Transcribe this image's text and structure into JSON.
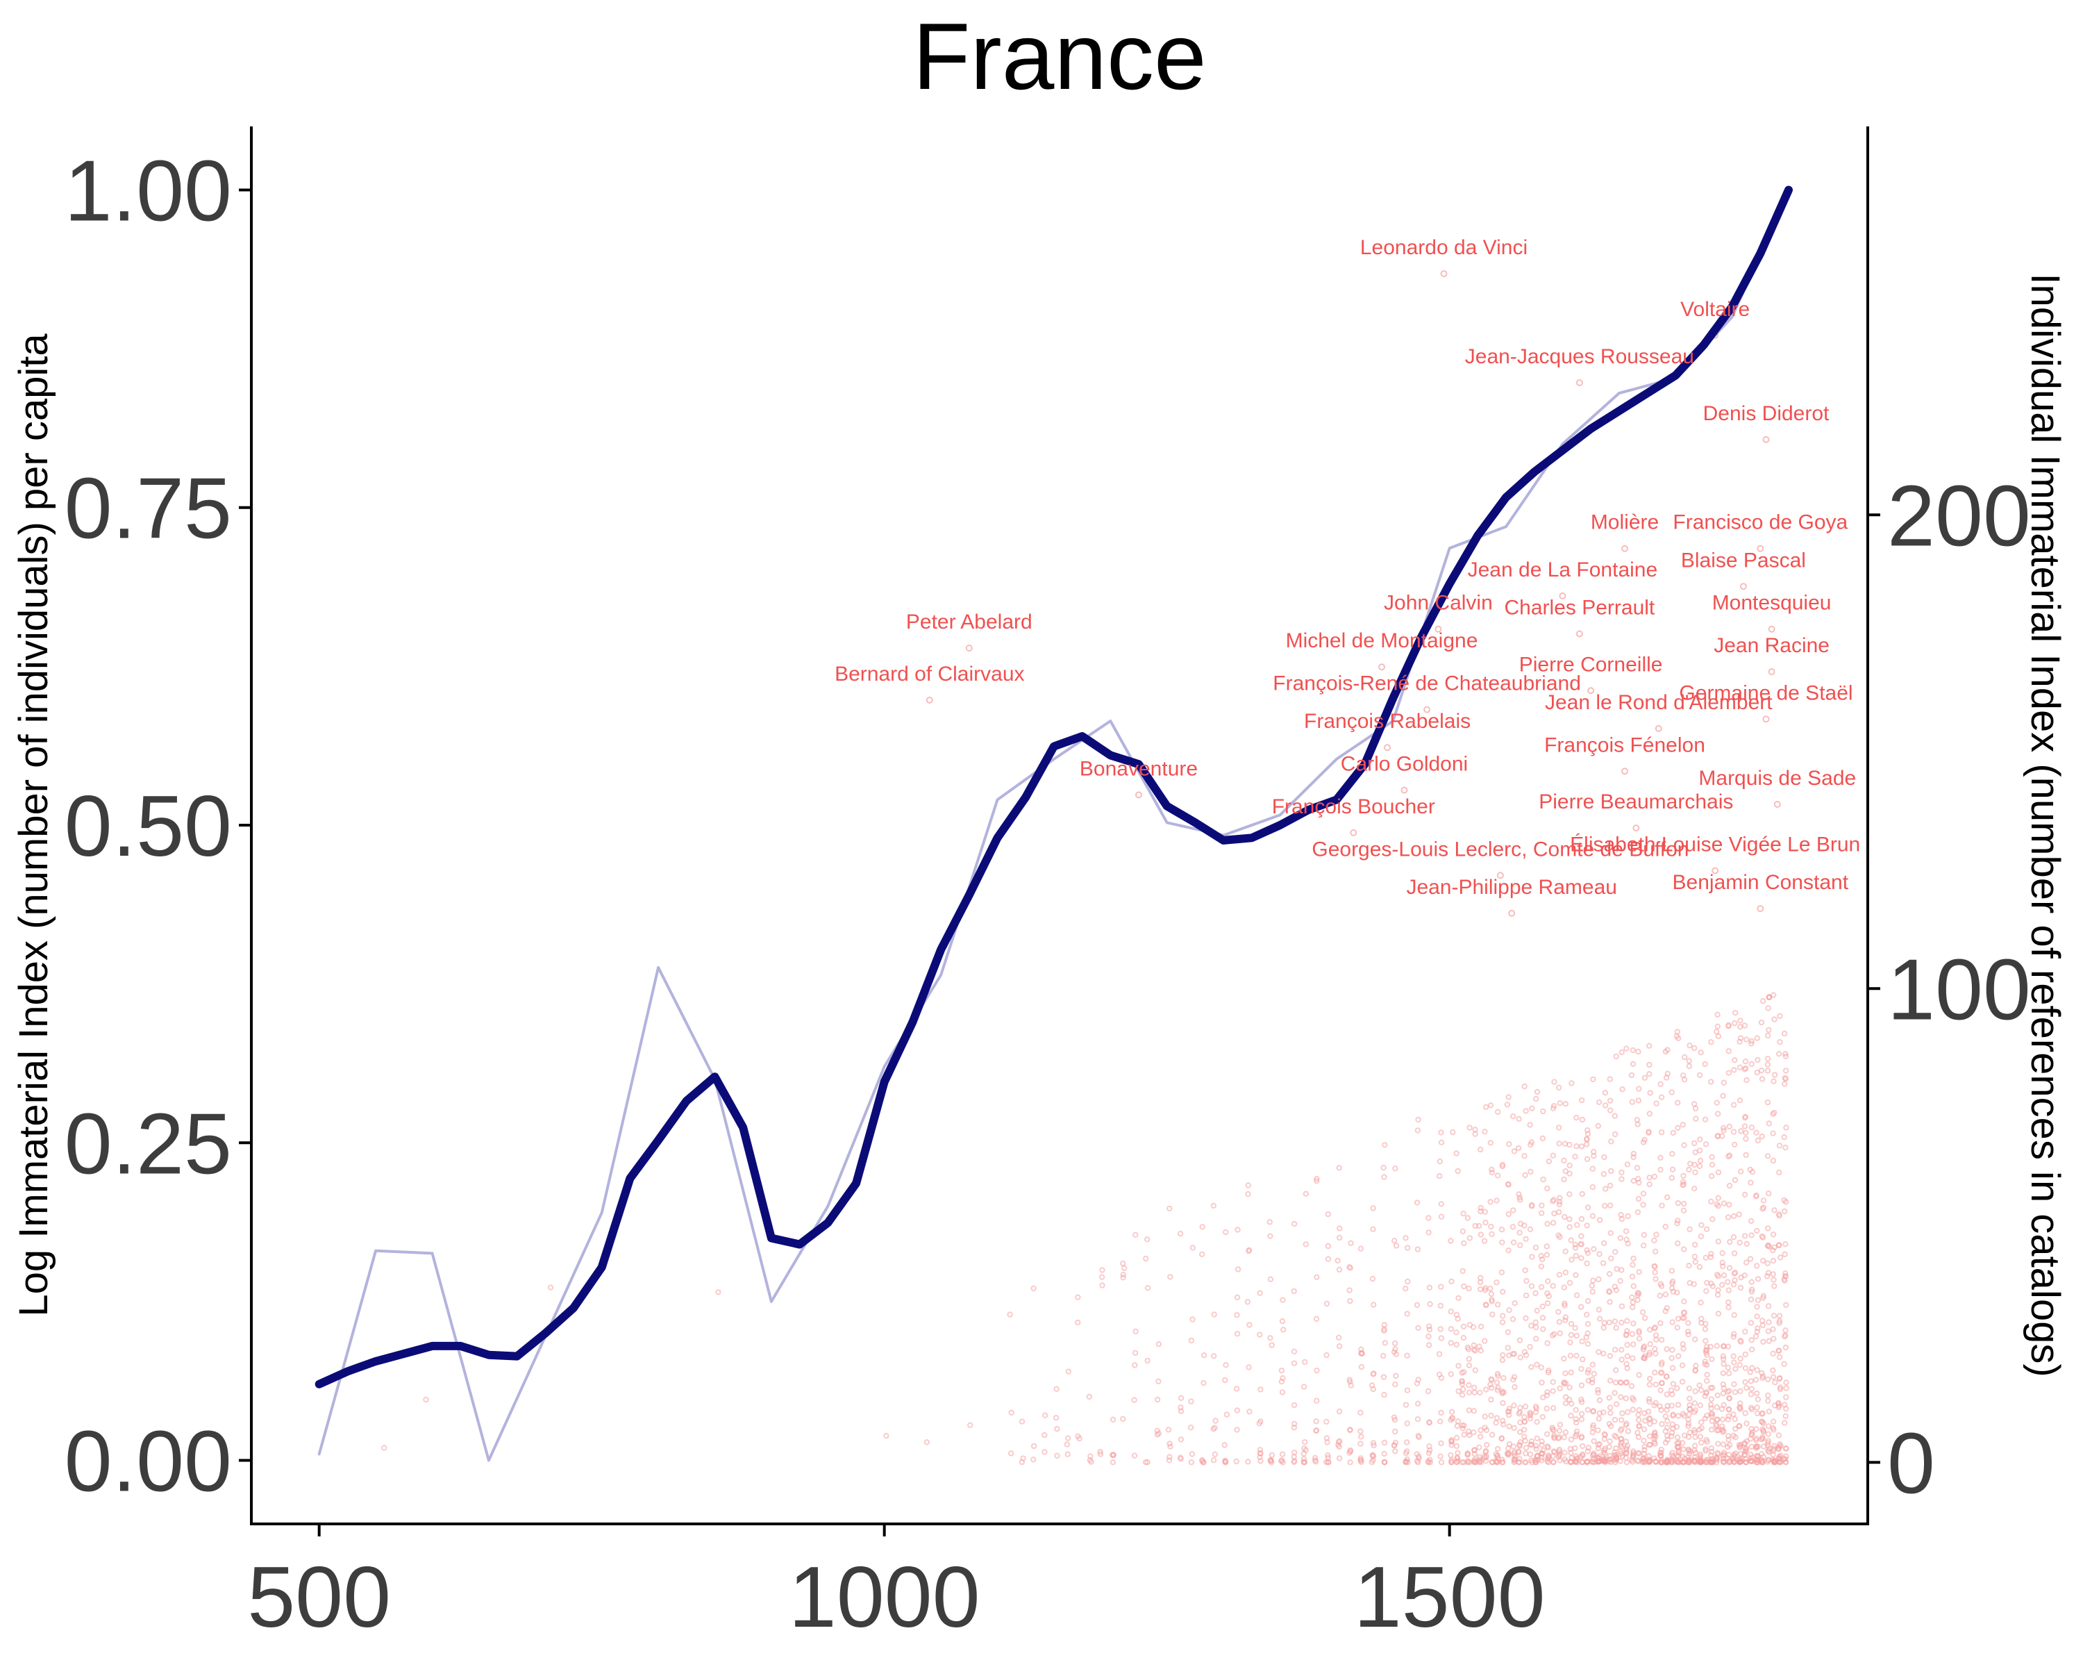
{
  "chart_data": {
    "type": "line",
    "title": "France",
    "xlabel": "",
    "ylabel": "Log Immaterial Index (number of individuals) per capita",
    "ylabel_right": "Individual Immaterial Index (number of references in catalogs)",
    "xlim": [
      440,
      1870
    ],
    "ylim": [
      -0.05,
      1.05
    ],
    "ylim_right": [
      -13,
      282
    ],
    "x_ticks": [
      500,
      1000,
      1500
    ],
    "x_tick_labels": [
      "500",
      "1000",
      "1500"
    ],
    "y_ticks": [
      0,
      0.25,
      0.5,
      0.75,
      1.0
    ],
    "y_tick_labels": [
      "0.00",
      "0.25",
      "0.50",
      "0.75",
      "1.00"
    ],
    "y_right_ticks": [
      0,
      100,
      200
    ],
    "y_right_tick_labels": [
      "0",
      "100",
      "200"
    ],
    "grid": false,
    "legend": "none",
    "colors": {
      "smooth": "#0b0b78",
      "raw": "#b3b3dd",
      "points": "#f4a0a0",
      "labels": "#f05050"
    },
    "series": [
      {
        "style": "raw",
        "x": [
          500,
          550,
          600,
          650,
          750,
          800,
          850,
          900,
          950,
          1000,
          1050,
          1100,
          1150,
          1200,
          1250,
          1300,
          1350,
          1400,
          1450,
          1500,
          1550,
          1600,
          1650,
          1700,
          1750,
          1800
        ],
        "y": [
          0.005,
          0.165,
          0.163,
          0.0,
          0.195,
          0.388,
          0.3,
          0.125,
          0.2,
          0.31,
          0.382,
          0.52,
          0.552,
          0.582,
          0.502,
          0.492,
          0.508,
          0.552,
          0.582,
          0.718,
          0.735,
          0.8,
          0.84,
          0.852,
          0.9,
          1.0
        ]
      },
      {
        "style": "smooth",
        "x": [
          500,
          525,
          550,
          575,
          600,
          625,
          650,
          675,
          700,
          725,
          750,
          775,
          800,
          825,
          850,
          875,
          900,
          925,
          950,
          975,
          1000,
          1025,
          1050,
          1075,
          1100,
          1125,
          1150,
          1175,
          1200,
          1225,
          1250,
          1275,
          1300,
          1325,
          1350,
          1375,
          1400,
          1425,
          1450,
          1475,
          1500,
          1525,
          1550,
          1575,
          1600,
          1625,
          1650,
          1675,
          1700,
          1725,
          1750,
          1775,
          1800
        ],
        "y": [
          0.06,
          0.07,
          0.078,
          0.084,
          0.09,
          0.09,
          0.083,
          0.082,
          0.1,
          0.12,
          0.152,
          0.222,
          0.252,
          0.283,
          0.302,
          0.262,
          0.175,
          0.17,
          0.187,
          0.218,
          0.298,
          0.345,
          0.402,
          0.445,
          0.49,
          0.522,
          0.562,
          0.57,
          0.555,
          0.548,
          0.515,
          0.502,
          0.488,
          0.49,
          0.5,
          0.512,
          0.52,
          0.548,
          0.6,
          0.648,
          0.69,
          0.728,
          0.758,
          0.778,
          0.795,
          0.812,
          0.826,
          0.84,
          0.854,
          0.878,
          0.908,
          0.95,
          1.0
        ]
      }
    ],
    "annotations": [
      {
        "text": "Leonardo da Vinci",
        "x": 1495,
        "y_right": 255
      },
      {
        "text": "Voltaire",
        "x": 1735,
        "y_right": 242
      },
      {
        "text": "Jean-Jacques Rousseau",
        "x": 1615,
        "y_right": 232
      },
      {
        "text": "Denis Diderot",
        "x": 1780,
        "y_right": 220
      },
      {
        "text": "Molière",
        "x": 1655,
        "y_right": 197
      },
      {
        "text": "Francisco de Goya",
        "x": 1775,
        "y_right": 197
      },
      {
        "text": "Blaise Pascal",
        "x": 1760,
        "y_right": 189
      },
      {
        "text": "Jean de La Fontaine",
        "x": 1600,
        "y_right": 187
      },
      {
        "text": "Montesquieu",
        "x": 1785,
        "y_right": 180
      },
      {
        "text": "John Calvin",
        "x": 1490,
        "y_right": 180
      },
      {
        "text": "Charles Perrault",
        "x": 1615,
        "y_right": 179
      },
      {
        "text": "Peter Abelard",
        "x": 1075,
        "y_right": 176
      },
      {
        "text": "Jean Racine",
        "x": 1785,
        "y_right": 171
      },
      {
        "text": "Michel de Montaigne",
        "x": 1440,
        "y_right": 172
      },
      {
        "text": "Pierre Corneille",
        "x": 1625,
        "y_right": 167
      },
      {
        "text": "Bernard of Clairvaux",
        "x": 1040,
        "y_right": 165
      },
      {
        "text": "François-René de Chateaubriand",
        "x": 1480,
        "y_right": 163
      },
      {
        "text": "Germaine de Staël",
        "x": 1780,
        "y_right": 161
      },
      {
        "text": "Jean le Rond d'Alembert",
        "x": 1685,
        "y_right": 159
      },
      {
        "text": "François Rabelais",
        "x": 1445,
        "y_right": 155
      },
      {
        "text": "François Fénelon",
        "x": 1655,
        "y_right": 150
      },
      {
        "text": "Carlo Goldoni",
        "x": 1460,
        "y_right": 146
      },
      {
        "text": "Bonaventure",
        "x": 1225,
        "y_right": 145
      },
      {
        "text": "Marquis de Sade",
        "x": 1790,
        "y_right": 143
      },
      {
        "text": "François Boucher",
        "x": 1415,
        "y_right": 137
      },
      {
        "text": "Pierre Beaumarchais",
        "x": 1665,
        "y_right": 138
      },
      {
        "text": "Élisabeth Louise Vigée Le Brun",
        "x": 1735,
        "y_right": 129
      },
      {
        "text": "Georges-Louis Leclerc, Comte de Buffon",
        "x": 1545,
        "y_right": 128
      },
      {
        "text": "Jean-Philippe Rameau",
        "x": 1555,
        "y_right": 120
      },
      {
        "text": "Benjamin Constant",
        "x": 1775,
        "y_right": 121
      }
    ]
  }
}
